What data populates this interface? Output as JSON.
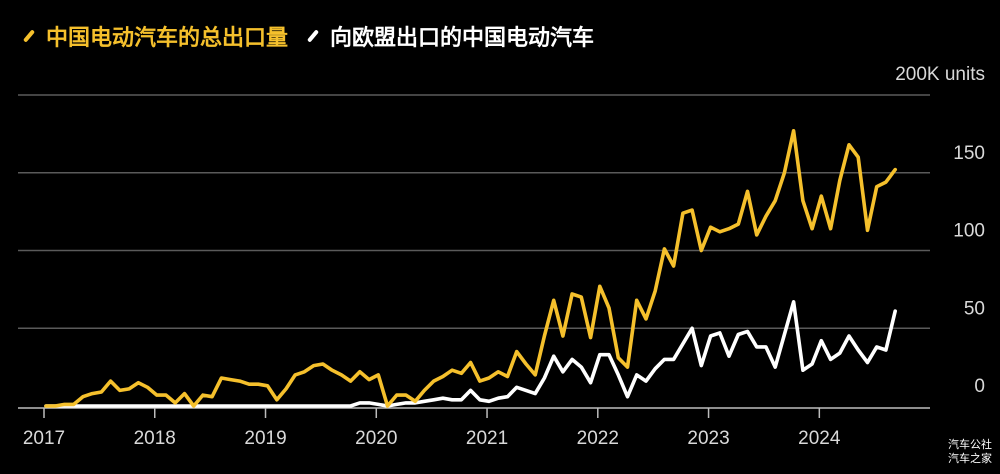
{
  "legend": {
    "total_label": "中国电动汽车的总出口量",
    "eu_label": "向欧盟出口的中国电动汽车"
  },
  "watermark": {
    "line1": "汽车公社",
    "line2": "汽车之家"
  },
  "chart_data": {
    "type": "line",
    "unit_label": "200K units",
    "y_ticks": [
      {
        "value": 0,
        "label": "0"
      },
      {
        "value": 50,
        "label": "50"
      },
      {
        "value": 100,
        "label": "100"
      },
      {
        "value": 150,
        "label": "150"
      },
      {
        "value": 200,
        "label": ""
      }
    ],
    "x_ticks": [
      "2017",
      "2018",
      "2019",
      "2020",
      "2021",
      "2022",
      "2023",
      "2024"
    ],
    "ylim": [
      0,
      200
    ],
    "grid": true,
    "colors": {
      "total": "#f5c02c",
      "eu": "#ffffff",
      "grid": "#5a5a5a",
      "axis": "#bdbdbd"
    },
    "series": [
      {
        "key": "total",
        "name": "中国电动汽车的总出口量",
        "values": [
          0,
          0,
          1,
          1,
          6,
          8,
          9,
          16,
          10,
          11,
          15,
          12,
          7,
          7,
          2,
          8,
          0,
          7,
          6,
          18,
          17,
          16,
          14,
          14,
          13,
          4,
          11,
          20,
          22,
          26,
          27,
          23,
          20,
          16,
          22,
          17,
          20,
          0,
          7,
          7,
          3,
          10,
          16,
          19,
          23,
          21,
          28,
          16,
          18,
          22,
          19,
          35,
          27,
          20,
          45,
          68,
          45,
          72,
          70,
          44,
          77,
          63,
          31,
          25,
          68,
          56,
          74,
          101,
          90,
          124,
          126,
          100,
          115,
          112,
          114,
          117,
          138,
          110,
          122,
          132,
          150,
          177,
          132,
          114,
          135,
          114,
          145,
          168,
          160,
          113,
          141,
          144,
          152
        ]
      },
      {
        "key": "eu",
        "name": "向欧盟出口的中国电动汽车",
        "values": [
          0,
          0,
          0,
          0,
          0,
          0,
          0,
          0,
          0,
          0,
          0,
          0,
          0,
          0,
          0,
          0,
          0,
          0,
          0,
          0,
          0,
          0,
          0,
          0,
          0,
          0,
          0,
          0,
          0,
          0,
          0,
          0,
          0,
          0,
          2,
          2,
          1,
          0,
          1,
          2,
          2,
          3,
          4,
          5,
          4,
          4,
          10,
          4,
          3,
          5,
          6,
          12,
          10,
          8,
          18,
          32,
          22,
          30,
          25,
          15,
          33,
          33,
          20,
          6,
          20,
          16,
          24,
          30,
          30,
          40,
          50,
          26,
          45,
          47,
          32,
          46,
          48,
          38,
          38,
          25,
          46,
          67,
          23,
          27,
          42,
          30,
          34,
          45,
          36,
          28,
          38,
          36,
          61
        ]
      }
    ]
  }
}
